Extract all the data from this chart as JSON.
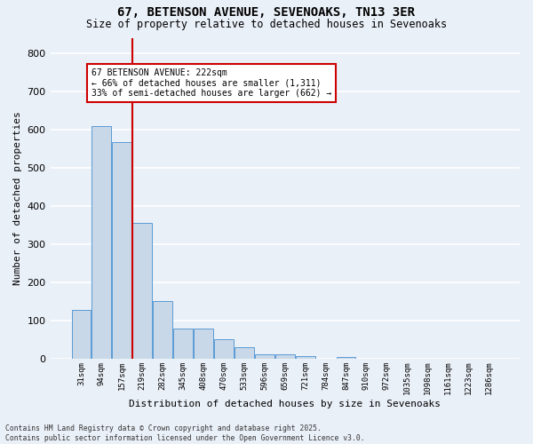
{
  "title_line1": "67, BETENSON AVENUE, SEVENOAKS, TN13 3ER",
  "title_line2": "Size of property relative to detached houses in Sevenoaks",
  "xlabel": "Distribution of detached houses by size in Sevenoaks",
  "ylabel": "Number of detached properties",
  "categories": [
    "31sqm",
    "94sqm",
    "157sqm",
    "219sqm",
    "282sqm",
    "345sqm",
    "408sqm",
    "470sqm",
    "533sqm",
    "596sqm",
    "659sqm",
    "721sqm",
    "784sqm",
    "847sqm",
    "910sqm",
    "972sqm",
    "1035sqm",
    "1098sqm",
    "1161sqm",
    "1223sqm",
    "1286sqm"
  ],
  "values": [
    128,
    608,
    568,
    355,
    150,
    78,
    78,
    51,
    31,
    12,
    12,
    7,
    0,
    5,
    0,
    0,
    0,
    0,
    0,
    0,
    0
  ],
  "bar_color": "#c8d8e8",
  "bar_edge_color": "#5b9bd5",
  "bg_color": "#eaf0f8",
  "grid_color": "#ffffff",
  "vline_x": 2.5,
  "vline_color": "#cc0000",
  "annotation_title": "67 BETENSON AVENUE: 222sqm",
  "annotation_line2": "← 66% of detached houses are smaller (1,311)",
  "annotation_line3": "33% of semi-detached houses are larger (662) →",
  "annotation_box_color": "#cc0000",
  "annotation_bg": "#ffffff",
  "footer_line1": "Contains HM Land Registry data © Crown copyright and database right 2025.",
  "footer_line2": "Contains public sector information licensed under the Open Government Licence v3.0.",
  "ylim": [
    0,
    840
  ],
  "yticks": [
    0,
    100,
    200,
    300,
    400,
    500,
    600,
    700,
    800
  ]
}
